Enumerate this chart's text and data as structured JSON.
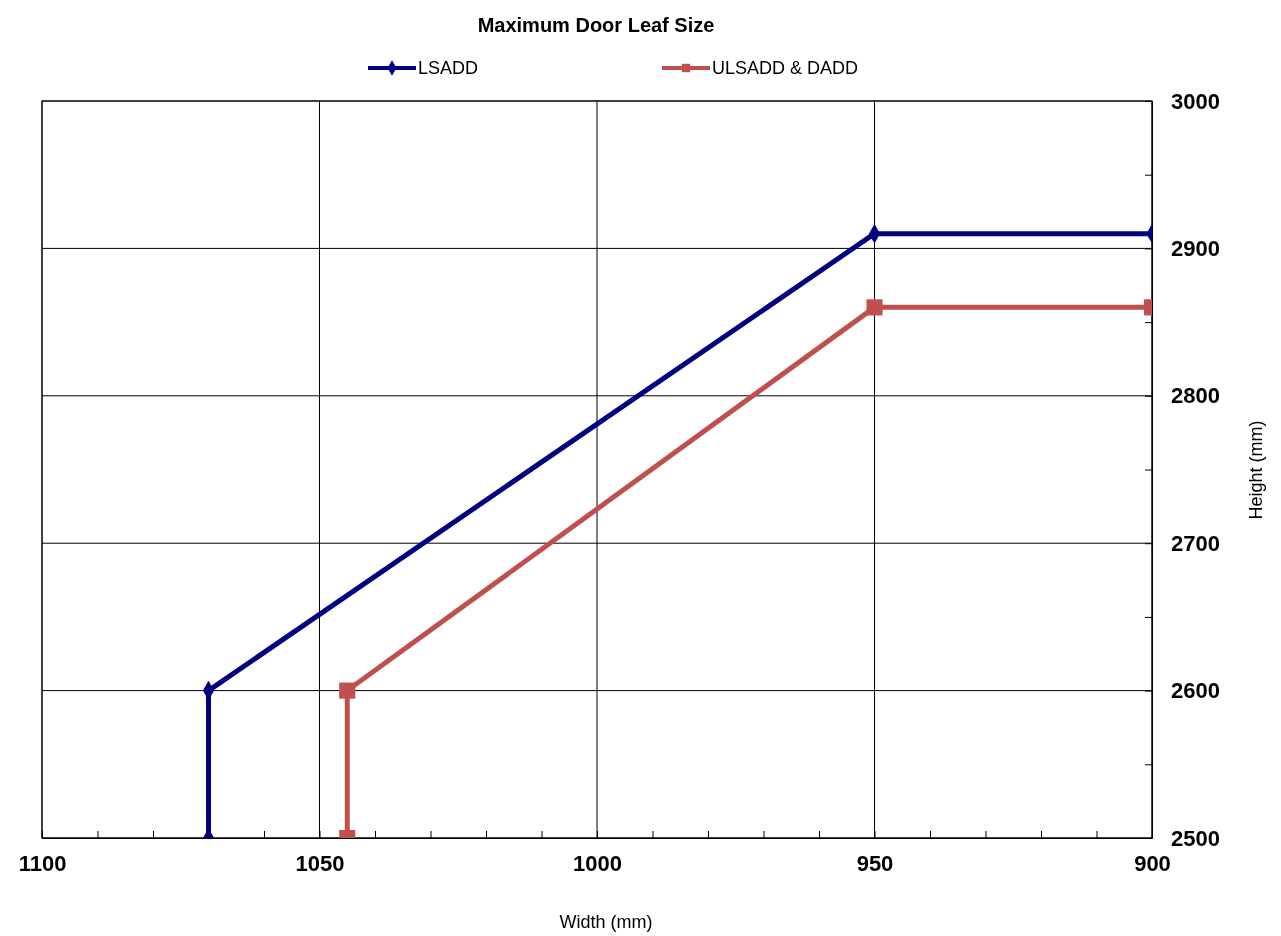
{
  "chart_data": {
    "type": "line",
    "title": "Maximum Door Leaf Size",
    "xlabel": "Width (mm)",
    "ylabel": "Height (mm)",
    "xlim": [
      1100,
      900
    ],
    "ylim": [
      2500,
      3000
    ],
    "xticks": [
      1100,
      {
        "value": 1090,
        "label": null
      },
      {
        "value": 1080,
        "label": null
      },
      {
        "value": 1070,
        "label": null
      },
      {
        "value": 1060,
        "label": null
      },
      1050,
      {
        "value": 1040,
        "label": null
      },
      {
        "value": 1030,
        "label": null
      },
      {
        "value": 1020,
        "label": null
      },
      {
        "value": 1010,
        "label": null
      },
      1000,
      {
        "value": 990,
        "label": null
      },
      {
        "value": 980,
        "label": null
      },
      {
        "value": 970,
        "label": null
      },
      {
        "value": 960,
        "label": null
      },
      950,
      {
        "value": 940,
        "label": null
      },
      {
        "value": 930,
        "label": null
      },
      {
        "value": 920,
        "label": null
      },
      {
        "value": 910,
        "label": null
      },
      900
    ],
    "yticks": [
      2500,
      {
        "value": 2550,
        "label": null
      },
      2600,
      {
        "value": 2650,
        "label": null
      },
      2700,
      {
        "value": 2750,
        "label": null
      },
      2800,
      {
        "value": 2850,
        "label": null
      },
      2900,
      {
        "value": 2950,
        "label": null
      },
      3000
    ],
    "grid": true,
    "legend": "top",
    "line_style": "solid",
    "series": [
      {
        "name": "LSADD",
        "color": "#000080",
        "marker": "diamond",
        "x": [
          1070,
          1070,
          950,
          900
        ],
        "values": [
          2500,
          2600,
          2910,
          2910
        ]
      },
      {
        "name": "ULSADD & DADD",
        "color": "#c0504d",
        "marker": "square",
        "x": [
          1045,
          1045,
          950,
          900
        ],
        "values": [
          2500,
          2600,
          2860,
          2860
        ]
      }
    ]
  }
}
